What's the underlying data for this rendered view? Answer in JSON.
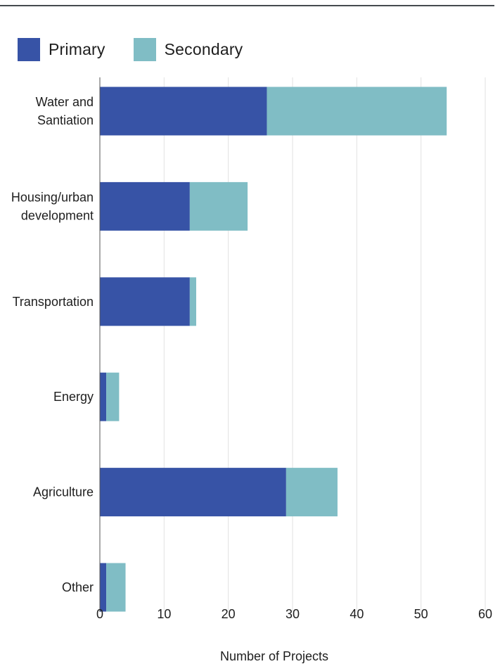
{
  "legend": {
    "primary_label": "Primary",
    "secondary_label": "Secondary"
  },
  "colors": {
    "primary": "#3753a6",
    "secondary": "#80bdc5",
    "grid": "#e2e2e2",
    "rule": "#444a4f"
  },
  "chart_data": {
    "type": "bar",
    "orientation": "horizontal",
    "stacked": true,
    "categories": [
      [
        "Water and",
        "Santiation"
      ],
      [
        "Housing/urban",
        "development"
      ],
      [
        "Transportation"
      ],
      [
        "Energy"
      ],
      [
        "Agriculture"
      ],
      [
        "Other"
      ]
    ],
    "series": [
      {
        "name": "Primary",
        "values": [
          26,
          14,
          14,
          1,
          29,
          1
        ]
      },
      {
        "name": "Secondary",
        "values": [
          28,
          9,
          1,
          2,
          8,
          3
        ]
      }
    ],
    "xlabel": "Number of Projects",
    "ylabel": "",
    "xlim": [
      0,
      60
    ],
    "xticks": [
      0,
      10,
      20,
      30,
      40,
      50,
      60
    ],
    "grid": "vertical",
    "legend_position": "top-left"
  }
}
